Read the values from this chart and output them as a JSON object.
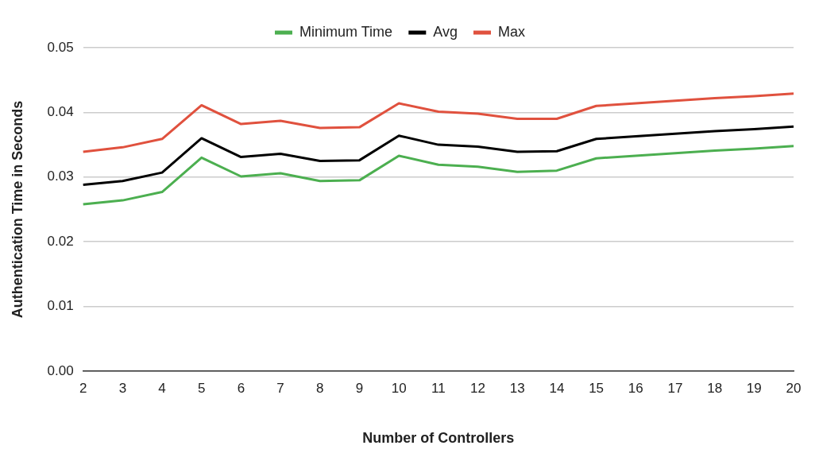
{
  "chart_data": {
    "type": "line",
    "xlabel": "Number of Controllers",
    "ylabel": "Authentication Time in Seconds",
    "categories": [
      "2",
      "3",
      "4",
      "5",
      "6",
      "7",
      "8",
      "9",
      "10",
      "11",
      "12",
      "13",
      "14",
      "15",
      "16",
      "17",
      "18",
      "19",
      "20"
    ],
    "series": [
      {
        "name": "Minimum Time",
        "color": "#4caf50",
        "values": [
          0.0258,
          0.0264,
          0.0277,
          0.033,
          0.0301,
          0.0306,
          0.0294,
          0.0295,
          0.0333,
          0.0319,
          0.0316,
          0.0308,
          0.031,
          0.0329,
          0.0333,
          0.0337,
          0.0341,
          0.0344,
          0.0348
        ]
      },
      {
        "name": "Avg",
        "color": "#000000",
        "values": [
          0.0288,
          0.0294,
          0.0307,
          0.036,
          0.0331,
          0.0336,
          0.0325,
          0.0326,
          0.0364,
          0.035,
          0.0347,
          0.0339,
          0.034,
          0.0359,
          0.0363,
          0.0367,
          0.0371,
          0.0374,
          0.0378
        ]
      },
      {
        "name": "Max",
        "color": "#e0513e",
        "values": [
          0.0339,
          0.0346,
          0.0359,
          0.0411,
          0.0382,
          0.0387,
          0.0376,
          0.0377,
          0.0414,
          0.0401,
          0.0398,
          0.039,
          0.039,
          0.041,
          0.0414,
          0.0418,
          0.0422,
          0.0425,
          0.0429
        ]
      }
    ],
    "ylim": [
      0,
      0.05
    ],
    "yticks": [
      {
        "value": 0,
        "label": "0.00"
      },
      {
        "value": 0.01,
        "label": "0.01"
      },
      {
        "value": 0.02,
        "label": "0.02"
      },
      {
        "value": 0.03,
        "label": "0.03"
      },
      {
        "value": 0.04,
        "label": "0.04"
      },
      {
        "value": 0.05,
        "label": "0.05"
      }
    ],
    "grid": "y",
    "legend": "top",
    "marker": "none",
    "line_style": "solid"
  }
}
